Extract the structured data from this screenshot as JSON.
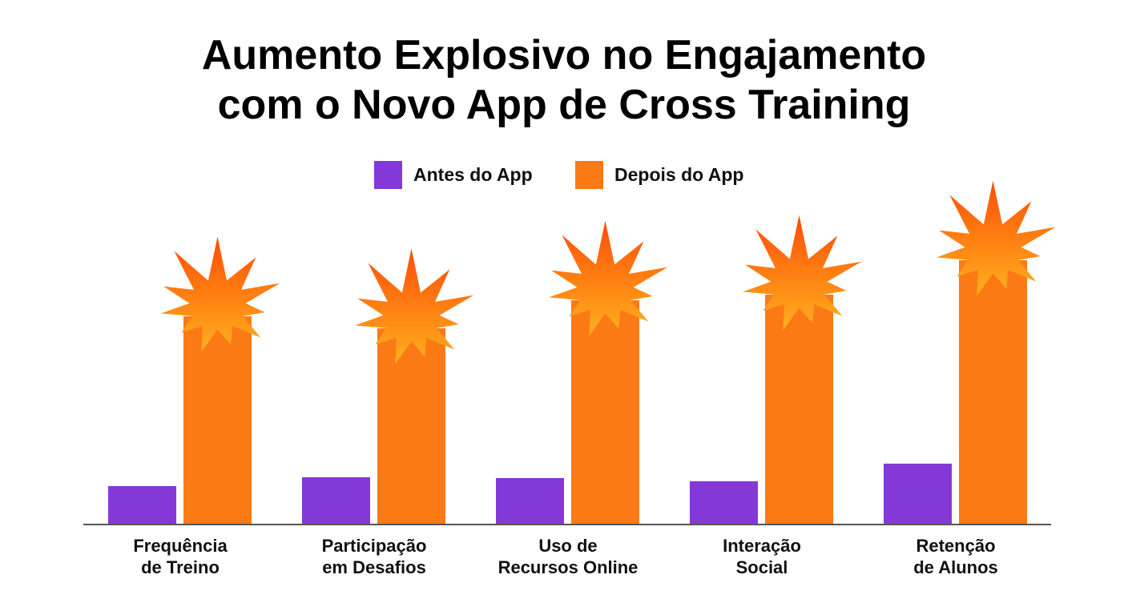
{
  "chart_data": {
    "type": "bar",
    "title": "Aumento Explosivo no Engajamento\ncom o Novo App de Cross Training",
    "categories": [
      "Frequência\nde Treino",
      "Participação\nem Desafios",
      "Uso de\nRecursos Online",
      "Interação\nSocial",
      "Retenção\nde Alunos"
    ],
    "series": [
      {
        "name": "Antes do App",
        "color": "#8438d8",
        "values": [
          48,
          59,
          58,
          54,
          76
        ]
      },
      {
        "name": "Depois do App",
        "color": "#fb7a14",
        "values": [
          260,
          245,
          280,
          287,
          330
        ]
      }
    ]
  }
}
